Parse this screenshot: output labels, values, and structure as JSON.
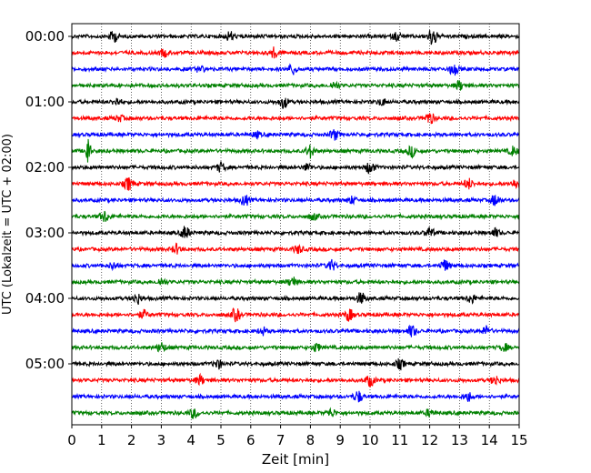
{
  "chart_data": {
    "type": "line",
    "subtype": "helicorder",
    "xlabel": "Zeit  [min]",
    "ylabel": "UTC (Lokalzeit = UTC + 02:00)",
    "xlim": [
      0,
      15
    ],
    "x_ticks": [
      "0",
      "1",
      "2",
      "3",
      "4",
      "5",
      "6",
      "7",
      "8",
      "9",
      "10",
      "11",
      "12",
      "13",
      "14",
      "15"
    ],
    "y_ticks": [
      {
        "label": "00:00",
        "trace_index": 0
      },
      {
        "label": "01:00",
        "trace_index": 4
      },
      {
        "label": "02:00",
        "trace_index": 8
      },
      {
        "label": "03:00",
        "trace_index": 12
      },
      {
        "label": "04:00",
        "trace_index": 16
      },
      {
        "label": "05:00",
        "trace_index": 20
      }
    ],
    "grid": {
      "vertical": true,
      "horizontal": false,
      "style": "dotted"
    },
    "trace_colors": [
      "#000000",
      "#ff0000",
      "#0000ff",
      "#008000"
    ],
    "trace_count": 24,
    "minutes_per_trace": 15,
    "traces": [
      {
        "start": "00:00",
        "color": "#000000",
        "bursts": [
          [
            1.4,
            1.0
          ],
          [
            5.3,
            0.8
          ],
          [
            12.1,
            1.7
          ],
          [
            10.9,
            0.7
          ]
        ]
      },
      {
        "start": "00:15",
        "color": "#ff0000",
        "bursts": [
          [
            6.8,
            0.9
          ],
          [
            3.1,
            0.6
          ]
        ]
      },
      {
        "start": "00:30",
        "color": "#0000ff",
        "bursts": [
          [
            7.4,
            0.9
          ],
          [
            12.8,
            1.0
          ],
          [
            4.3,
            0.5
          ]
        ]
      },
      {
        "start": "00:45",
        "color": "#008000",
        "bursts": [
          [
            13.0,
            0.8
          ],
          [
            8.8,
            0.6
          ]
        ]
      },
      {
        "start": "01:00",
        "color": "#000000",
        "bursts": [
          [
            7.1,
            1.0
          ],
          [
            1.5,
            0.7
          ],
          [
            10.4,
            0.6
          ]
        ]
      },
      {
        "start": "01:15",
        "color": "#ff0000",
        "bursts": [
          [
            12.0,
            1.1
          ],
          [
            1.6,
            0.5
          ]
        ]
      },
      {
        "start": "01:30",
        "color": "#0000ff",
        "bursts": [
          [
            8.8,
            0.9
          ],
          [
            6.2,
            0.5
          ]
        ]
      },
      {
        "start": "01:45",
        "color": "#008000",
        "bursts": [
          [
            0.55,
            4.5
          ],
          [
            8.0,
            1.1
          ],
          [
            11.4,
            0.9
          ],
          [
            14.8,
            0.8
          ]
        ]
      },
      {
        "start": "02:00",
        "color": "#000000",
        "bursts": [
          [
            10.0,
            1.1
          ],
          [
            5.0,
            0.8
          ],
          [
            7.9,
            0.6
          ]
        ]
      },
      {
        "start": "02:15",
        "color": "#ff0000",
        "bursts": [
          [
            1.9,
            1.1
          ],
          [
            13.3,
            0.9
          ],
          [
            14.9,
            0.9
          ]
        ]
      },
      {
        "start": "02:30",
        "color": "#0000ff",
        "bursts": [
          [
            5.8,
            0.9
          ],
          [
            14.2,
            1.0
          ],
          [
            9.4,
            0.6
          ]
        ]
      },
      {
        "start": "02:45",
        "color": "#008000",
        "bursts": [
          [
            1.1,
            1.0
          ],
          [
            8.1,
            0.6
          ]
        ]
      },
      {
        "start": "03:00",
        "color": "#000000",
        "bursts": [
          [
            3.8,
            1.1
          ],
          [
            12.0,
            0.9
          ],
          [
            14.2,
            0.7
          ]
        ]
      },
      {
        "start": "03:15",
        "color": "#ff0000",
        "bursts": [
          [
            3.5,
            0.8
          ],
          [
            7.6,
            0.7
          ]
        ]
      },
      {
        "start": "03:30",
        "color": "#0000ff",
        "bursts": [
          [
            8.7,
            0.9
          ],
          [
            12.5,
            1.0
          ],
          [
            1.4,
            0.6
          ]
        ]
      },
      {
        "start": "03:45",
        "color": "#008000",
        "bursts": [
          [
            7.4,
            0.9
          ],
          [
            3.0,
            0.6
          ]
        ]
      },
      {
        "start": "04:00",
        "color": "#000000",
        "bursts": [
          [
            2.2,
            0.9
          ],
          [
            9.7,
            1.0
          ],
          [
            13.4,
            0.8
          ]
        ]
      },
      {
        "start": "04:15",
        "color": "#ff0000",
        "bursts": [
          [
            5.5,
            1.1
          ],
          [
            9.3,
            1.0
          ],
          [
            2.4,
            0.7
          ]
        ]
      },
      {
        "start": "04:30",
        "color": "#0000ff",
        "bursts": [
          [
            11.4,
            1.0
          ],
          [
            13.9,
            0.8
          ],
          [
            6.4,
            0.6
          ]
        ]
      },
      {
        "start": "04:45",
        "color": "#008000",
        "bursts": [
          [
            3.0,
            0.9
          ],
          [
            8.2,
            0.7
          ],
          [
            14.5,
            0.6
          ]
        ]
      },
      {
        "start": "05:00",
        "color": "#000000",
        "bursts": [
          [
            4.9,
            0.8
          ],
          [
            11.0,
            0.8
          ]
        ]
      },
      {
        "start": "05:15",
        "color": "#ff0000",
        "bursts": [
          [
            4.3,
            0.8
          ],
          [
            10.0,
            1.0
          ],
          [
            14.2,
            0.8
          ]
        ]
      },
      {
        "start": "05:30",
        "color": "#0000ff",
        "bursts": [
          [
            9.6,
            1.0
          ],
          [
            13.3,
            0.8
          ]
        ]
      },
      {
        "start": "05:45",
        "color": "#008000",
        "bursts": [
          [
            4.1,
            0.9
          ],
          [
            8.7,
            0.7
          ],
          [
            12.0,
            0.6
          ]
        ]
      }
    ]
  }
}
